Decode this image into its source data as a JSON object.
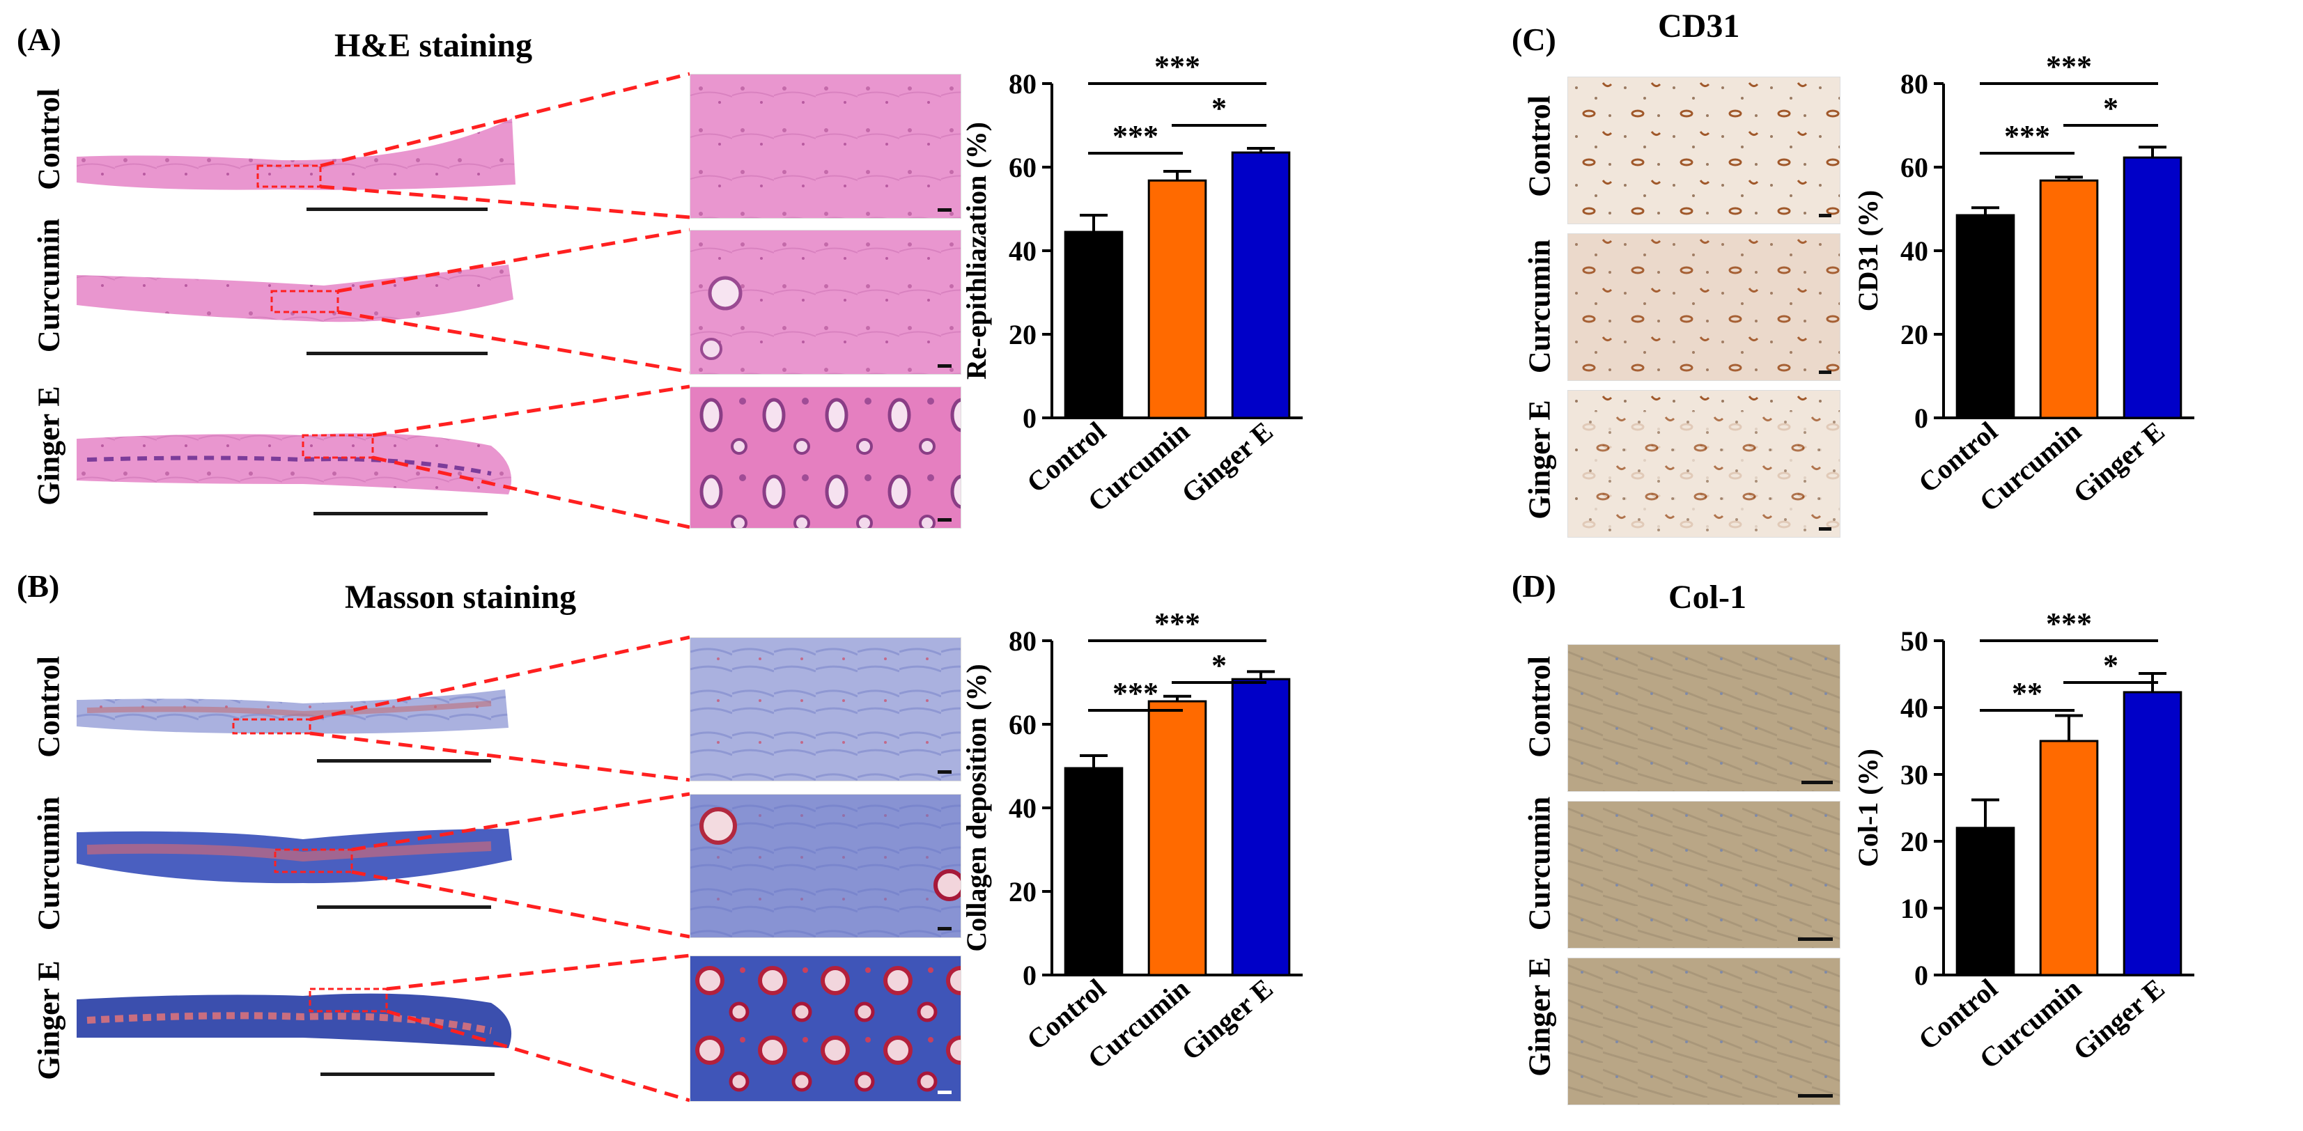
{
  "panels": {
    "A": {
      "letter": "(A)",
      "title": "H&E staining",
      "rows": [
        "Control",
        "Curcumin",
        "Ginger E"
      ]
    },
    "B": {
      "letter": "(B)",
      "title": "Masson staining",
      "rows": [
        "Control",
        "Curcumin",
        "Ginger E"
      ]
    },
    "C": {
      "letter": "(C)",
      "title": "CD31",
      "rows": [
        "Control",
        "Curcumin",
        "Ginger E"
      ]
    },
    "D": {
      "letter": "(D)",
      "title": "Col-1",
      "rows": [
        "Control",
        "Curcumin",
        "Ginger E"
      ]
    }
  },
  "colors": {
    "control": "#000000",
    "curcumin": "#ff6a00",
    "ginger": "#0000c8",
    "zoom_line": "#ff2020",
    "he_tissue": "#e47fc4",
    "masson_tissue": "#5a63c0",
    "cd31_bg": "#f1e6db",
    "col1_bg": "#b8a486"
  },
  "chart_data": [
    {
      "id": "A",
      "type": "bar",
      "categories": [
        "Control",
        "Curcumin",
        "Ginger E"
      ],
      "values": [
        44.5,
        56.8,
        63.5
      ],
      "errors": [
        4.0,
        2.2,
        1.0
      ],
      "ylabel": "Re-epithliazation (%)",
      "ylim": [
        0,
        80
      ],
      "yticks": [
        0,
        20,
        40,
        60,
        80
      ],
      "significance": [
        {
          "from": 0,
          "to": 2,
          "label": "***"
        },
        {
          "from": 0,
          "to": 1,
          "label": "***"
        },
        {
          "from": 1,
          "to": 2,
          "label": "*"
        }
      ]
    },
    {
      "id": "B",
      "type": "bar",
      "categories": [
        "Control",
        "Curcumin",
        "Ginger E"
      ],
      "values": [
        49.5,
        65.5,
        70.8
      ],
      "errors": [
        3.0,
        1.2,
        1.8
      ],
      "ylabel": "Collagen deposition (%)",
      "ylim": [
        0,
        80
      ],
      "yticks": [
        0,
        20,
        40,
        60,
        80
      ],
      "significance": [
        {
          "from": 0,
          "to": 2,
          "label": "***"
        },
        {
          "from": 0,
          "to": 1,
          "label": "***"
        },
        {
          "from": 1,
          "to": 2,
          "label": "*"
        }
      ]
    },
    {
      "id": "C",
      "type": "bar",
      "categories": [
        "Control",
        "Curcumin",
        "Ginger E"
      ],
      "values": [
        48.5,
        56.8,
        62.3
      ],
      "errors": [
        1.8,
        0.8,
        2.5
      ],
      "ylabel": "CD31 (%)",
      "ylim": [
        0,
        80
      ],
      "yticks": [
        0,
        20,
        40,
        60,
        80
      ],
      "significance": [
        {
          "from": 0,
          "to": 2,
          "label": "***"
        },
        {
          "from": 0,
          "to": 1,
          "label": "***"
        },
        {
          "from": 1,
          "to": 2,
          "label": "*"
        }
      ]
    },
    {
      "id": "D",
      "type": "bar",
      "categories": [
        "Control",
        "Curcumin",
        "Ginger E"
      ],
      "values": [
        22.0,
        35.0,
        42.3
      ],
      "errors": [
        4.2,
        3.8,
        2.8
      ],
      "ylabel": "Col-1 (%)",
      "ylim": [
        0,
        50
      ],
      "yticks": [
        0,
        10,
        20,
        30,
        40,
        50
      ],
      "significance": [
        {
          "from": 0,
          "to": 2,
          "label": "***"
        },
        {
          "from": 0,
          "to": 1,
          "label": "**"
        },
        {
          "from": 1,
          "to": 2,
          "label": "*"
        }
      ]
    }
  ]
}
